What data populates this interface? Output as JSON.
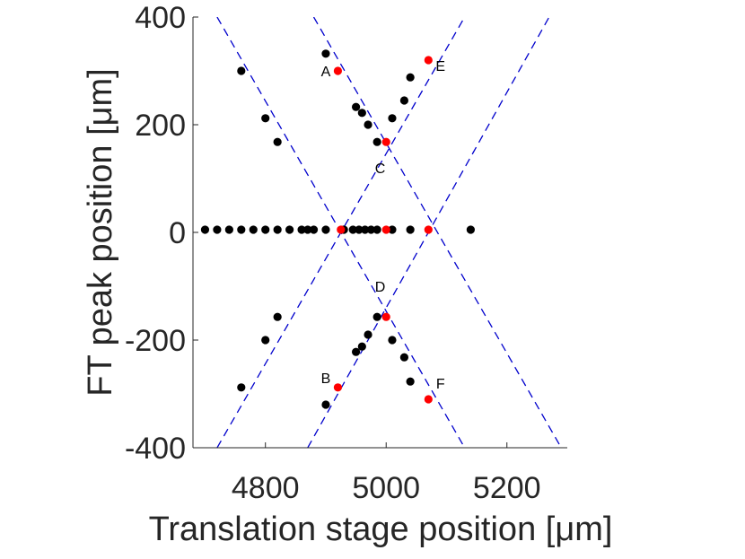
{
  "chart_data": {
    "type": "scatter",
    "xlabel": "Translation stage position [μm]",
    "ylabel": "FT peak position [μm]",
    "xlim": [
      4680,
      5300
    ],
    "ylim": [
      -400,
      400
    ],
    "xticks": [
      4800,
      5000,
      5200
    ],
    "yticks": [
      -400,
      -200,
      0,
      200,
      400
    ],
    "x_tick_labels": [
      "4800",
      "5000",
      "5200"
    ],
    "y_tick_labels": [
      "-400",
      "-200",
      "0",
      "200",
      "400"
    ],
    "grid": false,
    "colors": {
      "measured": "#000000",
      "highlight": "#ff0000",
      "fit": "#0000cc",
      "axis": "#262626"
    },
    "series": [
      {
        "points": [
          [
            4700,
            5
          ],
          [
            4720,
            5
          ],
          [
            4740,
            5
          ],
          [
            4760,
            5
          ],
          [
            4780,
            5
          ],
          [
            4800,
            5
          ],
          [
            4820,
            5
          ],
          [
            4840,
            5
          ],
          [
            4860,
            5
          ],
          [
            4870,
            5
          ],
          [
            4880,
            5
          ],
          [
            4900,
            5
          ],
          [
            4930,
            5
          ],
          [
            4945,
            5
          ],
          [
            4955,
            5
          ],
          [
            4965,
            5
          ],
          [
            4975,
            5
          ],
          [
            4985,
            5
          ],
          [
            5010,
            5
          ],
          [
            5040,
            5
          ],
          [
            5140,
            5
          ],
          [
            4760,
            300
          ],
          [
            4800,
            212
          ],
          [
            4820,
            168
          ],
          [
            4760,
            -288
          ],
          [
            4800,
            -200
          ],
          [
            4820,
            -157
          ],
          [
            4900,
            332
          ],
          [
            4950,
            233
          ],
          [
            4960,
            222
          ],
          [
            4970,
            200
          ],
          [
            4985,
            168
          ],
          [
            5010,
            212
          ],
          [
            5030,
            245
          ],
          [
            5040,
            288
          ],
          [
            4900,
            -320
          ],
          [
            4950,
            -222
          ],
          [
            4960,
            -212
          ],
          [
            4970,
            -190
          ],
          [
            4985,
            -157
          ],
          [
            5010,
            -200
          ],
          [
            5030,
            -232
          ],
          [
            5040,
            -277
          ]
        ]
      },
      {
        "points": [
          [
            4920,
            300
          ],
          [
            5070,
            320
          ],
          [
            5000,
            168
          ],
          [
            4920,
            -288
          ],
          [
            5070,
            -310
          ],
          [
            5000,
            -157
          ],
          [
            4925,
            5
          ],
          [
            5000,
            5
          ],
          [
            5070,
            5
          ]
        ]
      },
      {
        "lines": [
          [
            [
              4720,
              400
            ],
            [
              5130,
              -400
            ]
          ],
          [
            [
              4880,
              400
            ],
            [
              5290,
              -400
            ]
          ],
          [
            [
              4720,
              -400
            ],
            [
              5130,
              400
            ]
          ],
          [
            [
              4870,
              -400
            ],
            [
              5270,
              400
            ]
          ]
        ]
      }
    ],
    "annotations": [
      {
        "text": "A",
        "x": 4900,
        "y": 290
      },
      {
        "text": "E",
        "x": 5090,
        "y": 300
      },
      {
        "text": "C",
        "x": 4990,
        "y": 110
      },
      {
        "text": "D",
        "x": 4990,
        "y": -110
      },
      {
        "text": "B",
        "x": 4900,
        "y": -280
      },
      {
        "text": "F",
        "x": 5090,
        "y": -290
      }
    ]
  }
}
